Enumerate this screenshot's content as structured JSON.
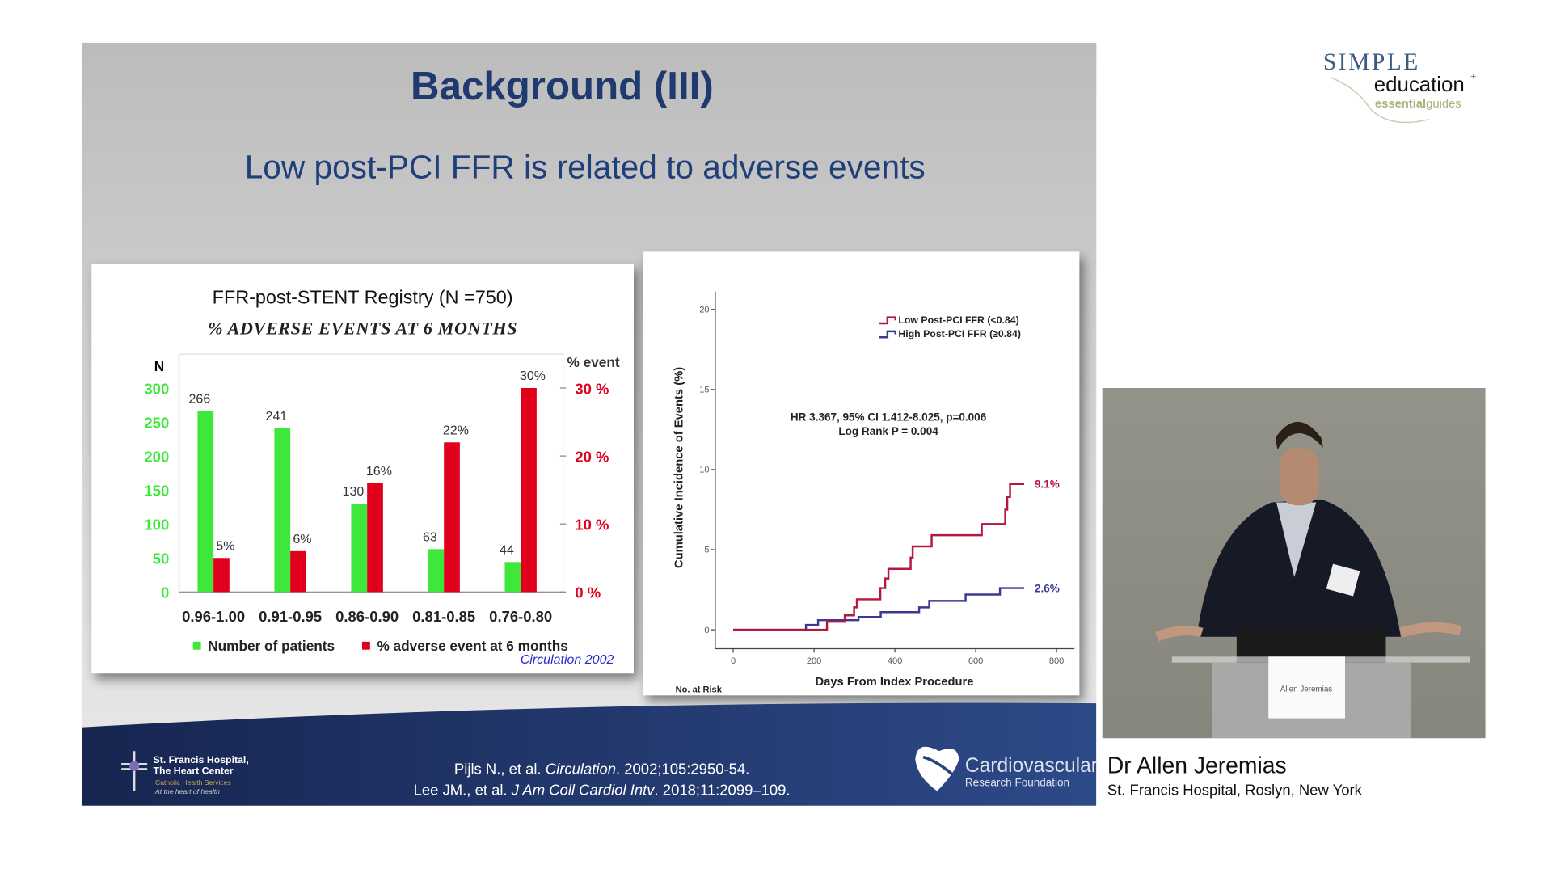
{
  "slide": {
    "title": "Background (III)",
    "subtitle": "Low post-PCI FFR is related to adverse events",
    "footer": {
      "citation_1_prefix": "Pijls N., et al. ",
      "citation_1_journal": "Circulation",
      "citation_1_suffix": ". 2002;105:2950-54.",
      "citation_2_prefix": "Lee JM., et al. ",
      "citation_2_journal": "J Am Coll Cardiol Intv",
      "citation_2_suffix": ". 2018;11:2099–109.",
      "hospital_logo": {
        "line1": "St. Francis Hospital,",
        "line2": "The Heart Center",
        "line3": "Catholic Health Services",
        "line4": "At the heart of health"
      },
      "crf_logo": {
        "line1": "Cardiovascular",
        "line2": "Research Foundation"
      }
    }
  },
  "branding": {
    "logo_line1": "SIMPLE",
    "logo_line2": "education",
    "logo_line3a": "essential",
    "logo_line3b": "guides"
  },
  "speaker": {
    "name": "Dr Allen Jeremias",
    "affiliation": "St. Francis Hospital, Roslyn, New York",
    "podium_sign": "Allen Jeremias"
  },
  "colors": {
    "title": "#1f3a6e",
    "green": "#3ee83a",
    "red": "#e0001b",
    "km_red": "#b5173e",
    "km_blue": "#3b3a8f",
    "footer": "#1c2c5a"
  },
  "chart_data": [
    {
      "type": "bar",
      "title": "FFR-post-STENT Registry (N =750)",
      "subtitle": "% ADVERSE EVENTS AT 6 MONTHS",
      "categories": [
        "0.96-1.00",
        "0.91-0.95",
        "0.86-0.90",
        "0.81-0.85",
        "0.76-0.80"
      ],
      "ylabel": "N",
      "ylabel_right": "% event",
      "ylim": [
        0,
        300
      ],
      "ylim_right": [
        0,
        30
      ],
      "yticks": [
        "0",
        "50",
        "100",
        "150",
        "200",
        "250",
        "300"
      ],
      "yticks_right": [
        "0 %",
        "10 %",
        "20 %",
        "30 %"
      ],
      "series": [
        {
          "name": "Number of patients",
          "axis": "left",
          "values": [
            266,
            241,
            130,
            63,
            44
          ],
          "labels": [
            "266",
            "241",
            "130",
            "63",
            "44"
          ]
        },
        {
          "name": "% adverse event at 6 months",
          "axis": "right",
          "values": [
            5,
            6,
            16,
            22,
            30
          ],
          "labels": [
            "5%",
            "6%",
            "16%",
            "22%",
            "30%"
          ]
        }
      ],
      "legend": "bottom",
      "source": "Circulation 2002"
    },
    {
      "type": "line",
      "step": true,
      "xlabel": "Days From Index Procedure",
      "ylabel": "Cumulative Incidence of Events (%)",
      "xlim": [
        0,
        800
      ],
      "ylim": [
        0,
        20
      ],
      "xticks": [
        "0",
        "200",
        "400",
        "600",
        "800"
      ],
      "yticks": [
        "0",
        "5",
        "10",
        "15",
        "20"
      ],
      "annotation_1": "HR 3.367, 95% CI 1.412-8.025, p=0.006",
      "annotation_2": "Log Rank P = 0.004",
      "footer_label": "No. at Risk",
      "legend": "top-right",
      "series": [
        {
          "name": "Low Post-PCI FFR (<0.84)",
          "end_label": "9.1%",
          "x": [
            0,
            232,
            276,
            299,
            306,
            364,
            376,
            384,
            439,
            444,
            491,
            615,
            673,
            678,
            685,
            720
          ],
          "y": [
            0,
            0.5,
            0.9,
            1.4,
            1.9,
            2.6,
            3.2,
            3.8,
            4.5,
            5.2,
            5.9,
            6.6,
            7.5,
            8.3,
            9.1,
            9.1
          ]
        },
        {
          "name": "High Post-PCI FFR (≥0.84)",
          "end_label": "2.6%",
          "x": [
            0,
            180,
            210,
            310,
            365,
            460,
            485,
            575,
            660,
            720
          ],
          "y": [
            0,
            0.3,
            0.6,
            0.8,
            1.1,
            1.4,
            1.8,
            2.2,
            2.6,
            2.6
          ]
        }
      ]
    }
  ]
}
